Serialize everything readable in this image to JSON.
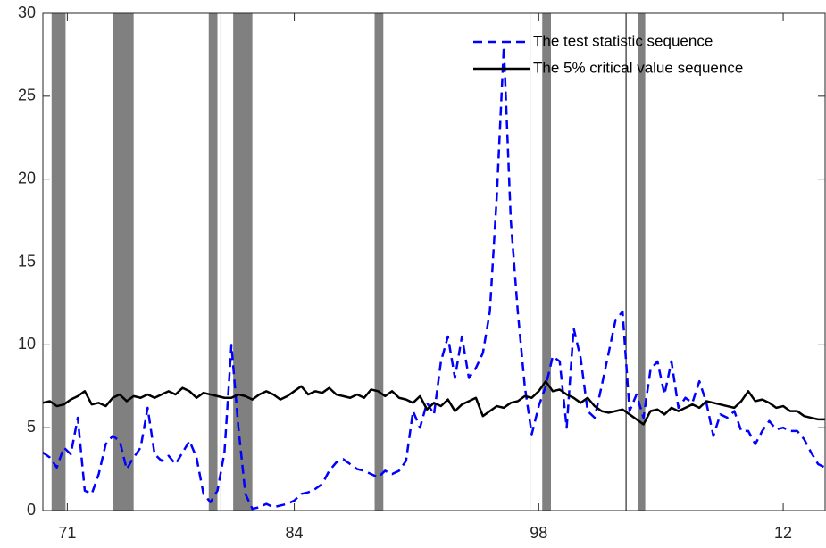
{
  "chart_data": {
    "type": "line",
    "x": [
      1969.6,
      1970.0,
      1970.4,
      1970.8,
      1971.2,
      1971.6,
      1972.0,
      1972.4,
      1972.8,
      1973.2,
      1973.6,
      1974.0,
      1974.4,
      1974.8,
      1975.2,
      1975.6,
      1976.0,
      1976.4,
      1976.8,
      1977.2,
      1977.6,
      1978.0,
      1978.4,
      1978.8,
      1979.2,
      1979.6,
      1980.0,
      1980.4,
      1980.8,
      1981.2,
      1981.6,
      1982.0,
      1982.4,
      1982.8,
      1983.2,
      1983.6,
      1984.0,
      1984.4,
      1984.8,
      1985.2,
      1985.6,
      1986.0,
      1986.4,
      1986.8,
      1987.2,
      1987.6,
      1988.0,
      1988.4,
      1988.8,
      1989.2,
      1989.6,
      1990.0,
      1990.4,
      1990.8,
      1991.2,
      1991.6,
      1992.0,
      1992.4,
      1992.8,
      1993.2,
      1993.6,
      1994.0,
      1994.4,
      1994.8,
      1995.2,
      1995.6,
      1996.0,
      1996.4,
      1996.8,
      1997.2,
      1997.6,
      1998.0,
      1998.4,
      1998.8,
      1999.2,
      1999.6,
      2000.0,
      2000.4,
      2000.8,
      2001.2,
      2001.6,
      2002.0,
      2002.4,
      2002.8,
      2003.2,
      2003.6,
      2004.0,
      2004.4,
      2004.8,
      2005.2,
      2005.6,
      2006.0,
      2006.4,
      2006.8,
      2007.2,
      2007.6,
      2008.0,
      2008.4,
      2008.8,
      2009.2,
      2009.6,
      2010.0,
      2010.4,
      2010.8,
      2011.2,
      2011.6,
      2012.0,
      2012.4,
      2012.8,
      2013.2,
      2013.6,
      2014.0,
      2014.4
    ],
    "series": [
      {
        "name": "The test statistic sequence",
        "color": "#0000ff",
        "dashed": true,
        "values": [
          3.5,
          3.2,
          2.6,
          3.8,
          3.4,
          5.6,
          1.2,
          1.0,
          2.2,
          4.0,
          4.5,
          4.2,
          2.5,
          3.2,
          3.8,
          6.2,
          3.4,
          3.0,
          3.3,
          2.8,
          3.5,
          4.2,
          3.2,
          1.0,
          0.5,
          1.2,
          3.5,
          10.0,
          5.0,
          1.0,
          0.1,
          0.2,
          0.4,
          0.2,
          0.3,
          0.4,
          0.6,
          1.0,
          1.1,
          1.3,
          1.6,
          2.4,
          2.9,
          3.1,
          2.8,
          2.5,
          2.4,
          2.2,
          2.0,
          2.4,
          2.2,
          2.4,
          3.0,
          6.0,
          5.0,
          6.5,
          5.8,
          9.0,
          10.5,
          8.0,
          10.5,
          8.0,
          8.6,
          9.5,
          12.0,
          19.0,
          28.0,
          17.5,
          12.0,
          7.5,
          4.6,
          6.3,
          7.5,
          9.3,
          9.0,
          5.0,
          11.0,
          9.2,
          6.0,
          5.6,
          7.5,
          9.5,
          11.5,
          12.0,
          6.0,
          7.0,
          5.6,
          8.5,
          9.0,
          7.0,
          9.0,
          6.2,
          6.8,
          6.5,
          7.8,
          6.5,
          4.5,
          5.8,
          5.6,
          6.0,
          4.8,
          4.8,
          4.0,
          4.8,
          5.4,
          4.9,
          5.0,
          4.8,
          4.8,
          4.3,
          3.5,
          2.8,
          2.6
        ]
      },
      {
        "name": "The 5% critical value sequence",
        "color": "#000000",
        "dashed": false,
        "values": [
          6.5,
          6.6,
          6.3,
          6.4,
          6.7,
          6.9,
          7.2,
          6.4,
          6.5,
          6.3,
          6.8,
          7.0,
          6.6,
          6.9,
          6.8,
          7.0,
          6.8,
          7.0,
          7.2,
          7.0,
          7.4,
          7.2,
          6.8,
          7.1,
          7.0,
          6.9,
          6.8,
          6.8,
          7.0,
          6.9,
          6.7,
          7.0,
          7.2,
          7.0,
          6.7,
          6.9,
          7.2,
          7.5,
          7.0,
          7.2,
          7.1,
          7.4,
          7.0,
          6.9,
          6.8,
          7.0,
          6.8,
          7.3,
          7.2,
          6.9,
          7.2,
          6.8,
          6.7,
          6.5,
          6.9,
          6.1,
          6.5,
          6.3,
          6.7,
          6.0,
          6.4,
          6.6,
          6.8,
          5.7,
          6.0,
          6.3,
          6.2,
          6.5,
          6.6,
          6.9,
          6.8,
          7.2,
          7.8,
          7.2,
          7.3,
          7.0,
          6.8,
          6.5,
          6.8,
          6.3,
          6.0,
          5.9,
          6.0,
          6.1,
          5.8,
          5.5,
          5.2,
          6.0,
          6.1,
          5.8,
          6.2,
          6.0,
          6.2,
          6.4,
          6.2,
          6.6,
          6.5,
          6.4,
          6.3,
          6.2,
          6.6,
          7.2,
          6.6,
          6.7,
          6.5,
          6.2,
          6.3,
          6.0,
          6.0,
          5.7,
          5.6,
          5.5,
          5.5
        ]
      }
    ],
    "shaded_periods": [
      [
        1970.1,
        1970.9
      ],
      [
        1973.6,
        1974.8
      ],
      [
        1979.1,
        1979.6
      ],
      [
        1980.5,
        1981.6
      ],
      [
        1988.6,
        1989.1
      ],
      [
        1998.2,
        1998.7
      ],
      [
        2003.7,
        2004.1
      ]
    ],
    "shade_color": "#808080",
    "vertical_lines": [
      1979.8,
      1997.5,
      2003.0
    ],
    "xlim": [
      1969.6,
      2014.4
    ],
    "xticks": [
      {
        "value": 1971,
        "label": "71"
      },
      {
        "value": 1984,
        "label": "84"
      },
      {
        "value": 1998,
        "label": "98"
      },
      {
        "value": 2012,
        "label": "12"
      }
    ],
    "ylim": [
      0,
      30
    ],
    "yticks": [
      0,
      5,
      10,
      15,
      20,
      25,
      30
    ],
    "grid": false,
    "legend": "upper right"
  }
}
